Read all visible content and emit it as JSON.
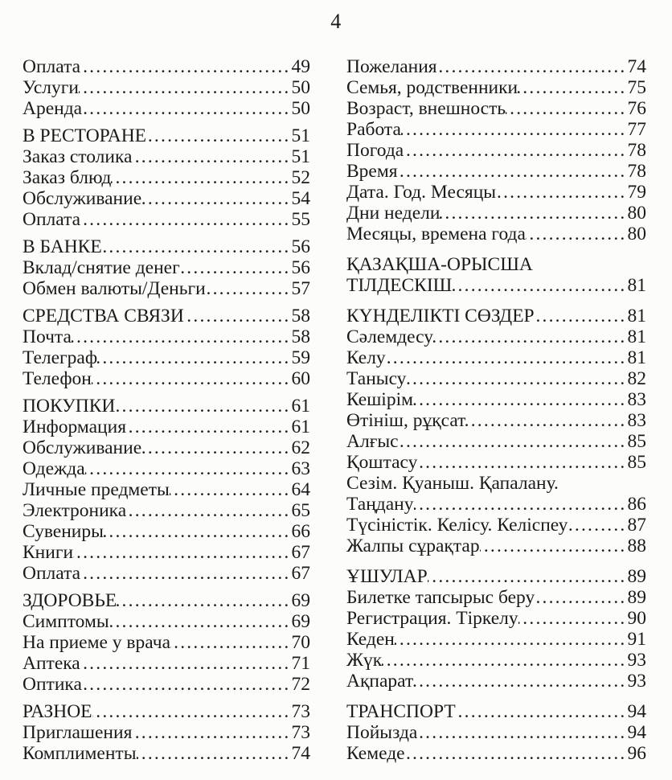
{
  "page": {
    "number": "4",
    "background_color": "#fcfcfb",
    "text_color": "#1a1a1a",
    "leader_dots": "......................................................................."
  },
  "toc": {
    "left_column": [
      {
        "label": "Оплата",
        "page": "49",
        "type": "entry"
      },
      {
        "label": "Услуги",
        "page": "50",
        "type": "entry"
      },
      {
        "label": "Аренда",
        "page": "50",
        "type": "entry"
      },
      {
        "label": "В РЕСТОРАНЕ",
        "page": "51",
        "type": "heading"
      },
      {
        "label": "Заказ столика",
        "page": "51",
        "type": "entry"
      },
      {
        "label": "Заказ блюд",
        "page": "52",
        "type": "entry"
      },
      {
        "label": "Обслуживание",
        "page": "54",
        "type": "entry"
      },
      {
        "label": "Оплата",
        "page": "55",
        "type": "entry"
      },
      {
        "label": "В БАНКЕ",
        "page": "56",
        "type": "heading"
      },
      {
        "label": "Вклад/снятие денег",
        "page": "56",
        "type": "entry"
      },
      {
        "label": "Обмен валюты/Деньги",
        "page": "57",
        "type": "entry"
      },
      {
        "label": "СРЕДСТВА СВЯЗИ",
        "page": "58",
        "type": "heading"
      },
      {
        "label": "Почта",
        "page": "58",
        "type": "entry"
      },
      {
        "label": "Телеграф",
        "page": "59",
        "type": "entry"
      },
      {
        "label": "Телефон",
        "page": "60",
        "type": "entry"
      },
      {
        "label": "ПОКУПКИ",
        "page": "61",
        "type": "heading"
      },
      {
        "label": "Информация",
        "page": "61",
        "type": "entry"
      },
      {
        "label": "Обслуживание",
        "page": "62",
        "type": "entry"
      },
      {
        "label": "Одежда",
        "page": "63",
        "type": "entry"
      },
      {
        "label": "Личные предметы",
        "page": "64",
        "type": "entry"
      },
      {
        "label": "Электроника",
        "page": "65",
        "type": "entry"
      },
      {
        "label": "Сувениры",
        "page": "66",
        "type": "entry"
      },
      {
        "label": "Книги",
        "page": "67",
        "type": "entry"
      },
      {
        "label": "Оплата",
        "page": "67",
        "type": "entry"
      },
      {
        "label": "ЗДОРОВЬЕ",
        "page": "69",
        "type": "heading"
      },
      {
        "label": "Симптомы",
        "page": "69",
        "type": "entry"
      },
      {
        "label": "На приеме у врача",
        "page": "70",
        "type": "entry"
      },
      {
        "label": "Аптека",
        "page": "71",
        "type": "entry"
      },
      {
        "label": "Оптика",
        "page": "72",
        "type": "entry"
      },
      {
        "label": "РАЗНОЕ",
        "page": "73",
        "type": "heading"
      },
      {
        "label": "Приглашения",
        "page": "73",
        "type": "entry"
      },
      {
        "label": "Комплименты",
        "page": "74",
        "type": "entry"
      }
    ],
    "right_column": [
      {
        "label": "Пожелания",
        "page": "74",
        "type": "entry"
      },
      {
        "label": "Семья, родственники",
        "page": "75",
        "type": "entry"
      },
      {
        "label": "Возраст, внешность",
        "page": "76",
        "type": "entry"
      },
      {
        "label": "Работа",
        "page": "77",
        "type": "entry"
      },
      {
        "label": "Погода",
        "page": "78",
        "type": "entry"
      },
      {
        "label": "Время",
        "page": "78",
        "type": "entry"
      },
      {
        "label": "Дата. Год. Месяцы",
        "page": "79",
        "type": "entry"
      },
      {
        "label": "Дни недели",
        "page": "80",
        "type": "entry"
      },
      {
        "label": "Месяцы, времена года",
        "page": "80",
        "type": "entry"
      },
      {
        "label": "ҚАЗАҚША-ОРЫСША",
        "label2": "ТІЛДЕСКІШ",
        "page": "81",
        "type": "heading"
      },
      {
        "label": "КҮНДЕЛІКТІ СӨЗДЕР",
        "page": "81",
        "type": "heading"
      },
      {
        "label": "Сәлемдесу",
        "page": "81",
        "type": "entry"
      },
      {
        "label": "Келу",
        "page": "81",
        "type": "entry"
      },
      {
        "label": "Танысу",
        "page": "82",
        "type": "entry"
      },
      {
        "label": "Кешірім",
        "page": "83",
        "type": "entry"
      },
      {
        "label": "Өтініш, рұқсат",
        "page": "83",
        "type": "entry"
      },
      {
        "label": "Алғыс",
        "page": "85",
        "type": "entry"
      },
      {
        "label": "Қоштасу",
        "page": "85",
        "type": "entry"
      },
      {
        "label": "Сезім. Қуаныш. Қапалану.",
        "label2": "Таңдану",
        "page": "86",
        "type": "entry"
      },
      {
        "label": "Түсіністік. Келісу. Келіспеу",
        "page": "87",
        "type": "entry"
      },
      {
        "label": "Жалпы сұрақтар",
        "page": "88",
        "type": "entry"
      },
      {
        "label": "ҰШУЛАР",
        "page": "89",
        "type": "heading"
      },
      {
        "label": "Билетке тапсырыс беру",
        "page": "89",
        "type": "entry"
      },
      {
        "label": "Регистрация. Тіркелу",
        "page": "90",
        "type": "entry"
      },
      {
        "label": "Кеден",
        "page": "91",
        "type": "entry"
      },
      {
        "label": "Жүк",
        "page": "93",
        "type": "entry"
      },
      {
        "label": "Ақпарат",
        "page": "93",
        "type": "entry"
      },
      {
        "label": "ТРАНСПОРТ",
        "page": "94",
        "type": "heading"
      },
      {
        "label": "Пойызда",
        "page": "94",
        "type": "entry"
      },
      {
        "label": "Кемеде",
        "page": "96",
        "type": "entry"
      }
    ]
  }
}
